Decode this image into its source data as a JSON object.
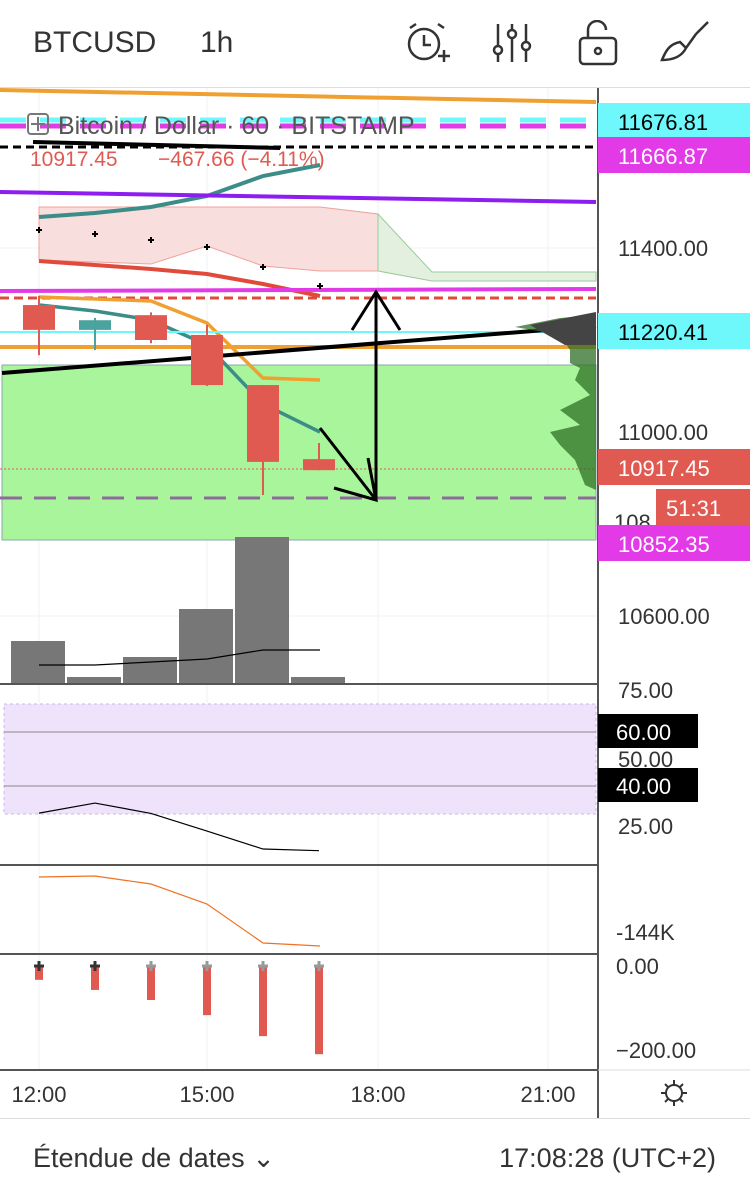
{
  "header": {
    "symbol": "BTCUSD",
    "interval": "1h",
    "icons": [
      "alarm-add-icon",
      "indicators-icon",
      "lock-icon",
      "drawing-brush-icon"
    ]
  },
  "legend": {
    "title": "Bitcoin / Dollar · 60 · BITSTAMP",
    "price": "10917.45",
    "change": "−467.66 (−4.11%)"
  },
  "price_axis": {
    "ticks": [
      "11400.00",
      "11000.00",
      "10600.00"
    ],
    "partial_tick": "108",
    "labels": [
      {
        "text": "11676.81",
        "bg": "#6ff8fb",
        "fg": "#000"
      },
      {
        "text": "11666.87",
        "bg": "#e33ae8",
        "fg": "#fff"
      },
      {
        "text": "11220.41",
        "bg": "#6ff8fb",
        "fg": "#000"
      },
      {
        "text": "10917.45",
        "bg": "#e05a52",
        "fg": "#fff"
      },
      {
        "text": "51:31",
        "bg": "#e05a52",
        "fg": "#fff"
      },
      {
        "text": "10852.35",
        "bg": "#e33ae8",
        "fg": "#fff"
      }
    ]
  },
  "rsi_axis": {
    "ticks": [
      "75.00",
      "50.00",
      "25.00"
    ],
    "labels": [
      "60.00",
      "40.00"
    ]
  },
  "obv_axis": {
    "ticks": [
      "-144K"
    ]
  },
  "macd_axis": {
    "ticks": [
      "0.00",
      "−200.00"
    ]
  },
  "time_axis": [
    "12:00",
    "15:00",
    "18:00",
    "21:00"
  ],
  "chart_data": {
    "type": "candlestick",
    "times": [
      "12:00",
      "13:00",
      "14:00",
      "15:00",
      "16:00",
      "17:00"
    ],
    "ohlc": [
      [
        11276,
        11296,
        11167,
        11222
      ],
      [
        11222,
        11248,
        11178,
        11243
      ],
      [
        11254,
        11260,
        11193,
        11200
      ],
      [
        11211,
        11233,
        11100,
        11102
      ],
      [
        11102,
        11102,
        10863,
        10935
      ],
      [
        10941,
        10976,
        10917,
        10917
      ]
    ],
    "volume": [
      42,
      6,
      26,
      74,
      146,
      6
    ],
    "rsi": [
      30.1,
      33.8,
      30,
      23.5,
      16.9,
      16.3
    ],
    "macd_hist": [
      -33,
      -57,
      -81,
      -117,
      -167,
      -210
    ]
  },
  "footer": {
    "range_label": "Étendue de dates",
    "time": "17:08:28 (UTC+2)"
  },
  "colors": {
    "up": "#4aa39d",
    "down": "#e05a52",
    "zone": "#a9f59c",
    "rsi_band": "#eee3fb"
  }
}
